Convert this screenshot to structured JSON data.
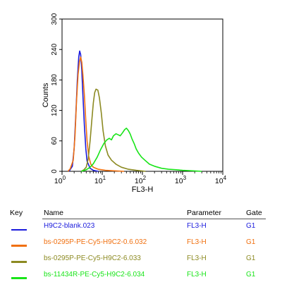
{
  "chart_data": {
    "type": "line",
    "xlabel": "FL3-H",
    "ylabel": "Counts",
    "x_scale": "log",
    "xlim": [
      1,
      10000
    ],
    "ylim": [
      0,
      300
    ],
    "x_ticks": [
      {
        "value": 1,
        "base": "10",
        "exp": "0"
      },
      {
        "value": 10,
        "base": "10",
        "exp": "1"
      },
      {
        "value": 100,
        "base": "10",
        "exp": "2"
      },
      {
        "value": 1000,
        "base": "10",
        "exp": "3"
      },
      {
        "value": 10000,
        "base": "10",
        "exp": "4"
      }
    ],
    "y_ticks": [
      0,
      60,
      120,
      180,
      240,
      300
    ],
    "y_tick_labels": [
      "0",
      "60",
      "120",
      "180",
      "240",
      "300"
    ],
    "grid": false,
    "series": [
      {
        "name": "H9C2-blank.023",
        "color": "#1a1adc",
        "points": [
          [
            1.5,
            0
          ],
          [
            1.8,
            10
          ],
          [
            2.0,
            45
          ],
          [
            2.2,
            110
          ],
          [
            2.4,
            180
          ],
          [
            2.6,
            225
          ],
          [
            2.75,
            237
          ],
          [
            2.9,
            230
          ],
          [
            3.1,
            200
          ],
          [
            3.3,
            150
          ],
          [
            3.6,
            90
          ],
          [
            3.9,
            45
          ],
          [
            4.2,
            20
          ],
          [
            5,
            6
          ],
          [
            6,
            2
          ],
          [
            8,
            0
          ]
        ]
      },
      {
        "name": "bs-0295P-PE-Cy5-H9C2-0.6.032",
        "color": "#f07010",
        "points": [
          [
            1.4,
            0
          ],
          [
            1.6,
            5
          ],
          [
            1.9,
            22
          ],
          [
            2.1,
            70
          ],
          [
            2.3,
            140
          ],
          [
            2.5,
            190
          ],
          [
            2.7,
            215
          ],
          [
            2.9,
            225
          ],
          [
            3.1,
            215
          ],
          [
            3.3,
            190
          ],
          [
            3.6,
            150
          ],
          [
            3.9,
            100
          ],
          [
            4.2,
            60
          ],
          [
            4.6,
            30
          ],
          [
            5.2,
            14
          ],
          [
            6,
            8
          ],
          [
            8,
            4
          ],
          [
            12,
            2
          ],
          [
            20,
            1
          ],
          [
            35,
            0
          ]
        ]
      },
      {
        "name": "bs-0295P-PE-Cy5-H9C2-6.033",
        "color": "#8c8a22",
        "points": [
          [
            3,
            0
          ],
          [
            3.5,
            3
          ],
          [
            4.0,
            8
          ],
          [
            4.5,
            25
          ],
          [
            5,
            60
          ],
          [
            5.5,
            100
          ],
          [
            6,
            135
          ],
          [
            6.5,
            155
          ],
          [
            7,
            162
          ],
          [
            7.8,
            160
          ],
          [
            8.5,
            145
          ],
          [
            9.5,
            115
          ],
          [
            10.5,
            80
          ],
          [
            12,
            50
          ],
          [
            14,
            32
          ],
          [
            17,
            22
          ],
          [
            22,
            14
          ],
          [
            30,
            8
          ],
          [
            45,
            4
          ],
          [
            70,
            2
          ],
          [
            120,
            0
          ]
        ]
      },
      {
        "name": "bs-11434R-PE-Cy5-H9C2-6.034",
        "color": "#18e418",
        "points": [
          [
            3,
            0
          ],
          [
            4,
            3
          ],
          [
            5,
            8
          ],
          [
            6,
            15
          ],
          [
            7.5,
            28
          ],
          [
            9,
            42
          ],
          [
            11,
            55
          ],
          [
            13,
            62
          ],
          [
            15,
            65
          ],
          [
            17,
            62
          ],
          [
            19,
            70
          ],
          [
            22,
            74
          ],
          [
            25,
            72
          ],
          [
            28,
            70
          ],
          [
            32,
            76
          ],
          [
            36,
            82
          ],
          [
            40,
            85
          ],
          [
            45,
            80
          ],
          [
            50,
            73
          ],
          [
            55,
            64
          ],
          [
            62,
            55
          ],
          [
            70,
            44
          ],
          [
            80,
            36
          ],
          [
            95,
            28
          ],
          [
            115,
            22
          ],
          [
            150,
            14
          ],
          [
            200,
            10
          ],
          [
            300,
            6
          ],
          [
            450,
            4
          ],
          [
            700,
            3
          ],
          [
            1000,
            2
          ],
          [
            1800,
            1
          ],
          [
            3000,
            0
          ]
        ]
      }
    ]
  },
  "key": {
    "headers": {
      "key": "Key",
      "name": "Name",
      "parameter": "Parameter",
      "gate": "Gate"
    },
    "rows": [
      {
        "name": "H9C2-blank.023",
        "parameter": "FL3-H",
        "gate": "G1",
        "color": "#1a1adc"
      },
      {
        "name": "bs-0295P-PE-Cy5-H9C2-0.6.032",
        "parameter": "FL3-H",
        "gate": "G1",
        "color": "#f07010"
      },
      {
        "name": "bs-0295P-PE-Cy5-H9C2-6.033",
        "parameter": "FL3-H",
        "gate": "G1",
        "color": "#8c8a22"
      },
      {
        "name": "bs-11434R-PE-Cy5-H9C2-6.034",
        "parameter": "FL3-H",
        "gate": "G1",
        "color": "#18e418"
      }
    ]
  }
}
